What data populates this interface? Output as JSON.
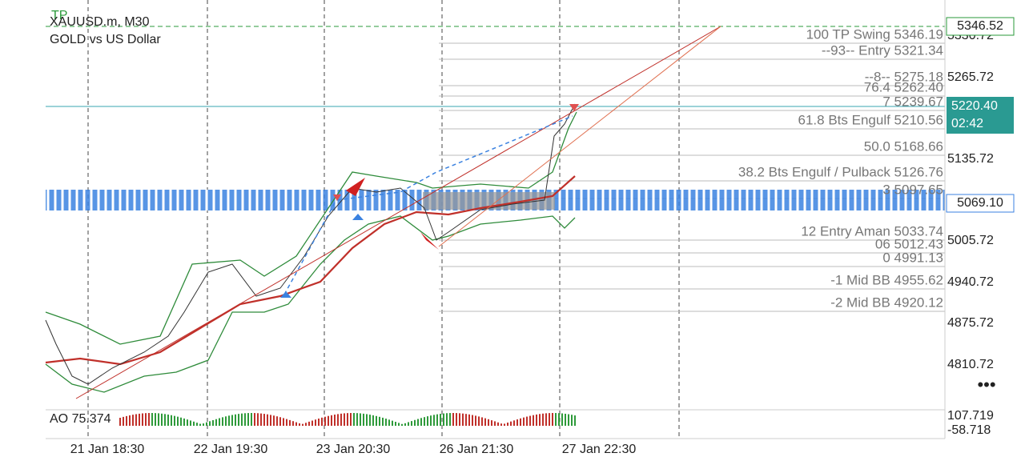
{
  "symbol": {
    "tp_marker": "TP",
    "ticker": "XAUUSD.m, M30",
    "name": "GOLD vs US Dollar"
  },
  "price_axis": {
    "labels": [
      "5330.72",
      "5265.72",
      "5135.72",
      "5005.72",
      "4940.72",
      "4875.72",
      "4810.72"
    ],
    "tp_price": "5346.52",
    "current_price": "5220.40",
    "countdown": "02:42",
    "level_price": "5069.10"
  },
  "levels": [
    "100 TP Swing 5346.19",
    "--93-- Entry 5321.34",
    "--8-- 5275.18",
    "76.4 5262.40",
    "7 5239.67",
    "61.8 Bts Engulf 5210.56",
    "50.0 5168.66",
    "38.2 Bts Engulf / Pulback 5126.76",
    "3 5097.65",
    "12 Entry Aman 5033.74",
    "06 5012.43",
    "0 4991.13",
    "-1 Mid BB 4955.62",
    "-2 Mid BB 4920.12"
  ],
  "time_axis": [
    "21 Jan 18:30",
    "22 Jan 19:30",
    "23 Jan 20:30",
    "26 Jan 21:30",
    "27 Jan 22:30"
  ],
  "indicator": {
    "label": "AO 75.374",
    "max": "107.719",
    "min": "-58.718"
  }
}
